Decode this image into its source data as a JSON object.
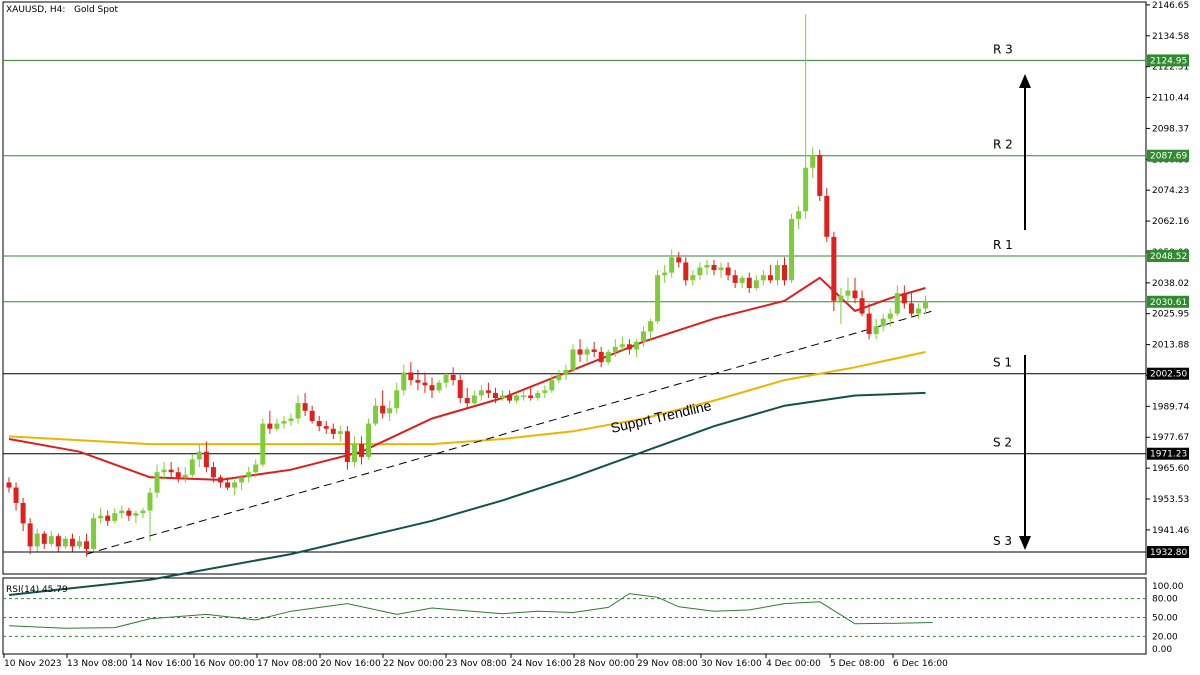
{
  "header": {
    "symbol": "XAUUSD, H4:",
    "description": "Gold Spot"
  },
  "indicator": {
    "label": "RSI(14) 45.79",
    "ticks": [
      "100.00",
      "80.00",
      "50.00",
      "20.00",
      "0.00"
    ]
  },
  "annotation": "Supprt Trendline",
  "chart_data": {
    "type": "candlestick",
    "price_range": [
      1925,
      2147
    ],
    "price_ticks": [
      "2146.65",
      "2134.58",
      "2122.51",
      "2110.44",
      "2098.37",
      "2086.30",
      "2074.23",
      "2062.16",
      "2050.09",
      "2038.02",
      "2025.95",
      "2013.88",
      "2001.81",
      "1989.74",
      "1977.67",
      "1965.60",
      "1953.53",
      "1941.46"
    ],
    "time_labels": [
      "10 Nov 2023",
      "13 Nov 08:00",
      "14 Nov 16:00",
      "16 Nov 00:00",
      "17 Nov 08:00",
      "20 Nov 16:00",
      "22 Nov 00:00",
      "23 Nov 08:00",
      "24 Nov 16:00",
      "28 Nov 00:00",
      "29 Nov 08:00",
      "30 Nov 16:00",
      "4 Dec 00:00",
      "5 Dec 08:00",
      "6 Dec 16:00"
    ],
    "levels": [
      {
        "name": "R 3",
        "price": "2124.95",
        "color": "#2e8b2e"
      },
      {
        "name": "R 2",
        "price": "2087.69",
        "color": "#2e8b2e"
      },
      {
        "name": "R 1",
        "price": "2048.52",
        "color": "#2e8b2e"
      },
      {
        "name": "",
        "price": "2030.61",
        "color": "#2e8b2e"
      },
      {
        "name": "S 1",
        "price": "2002.50",
        "color": "#000000"
      },
      {
        "name": "S 2",
        "price": "1971.23",
        "color": "#000000"
      },
      {
        "name": "S 3",
        "price": "1932.80",
        "color": "#000000"
      }
    ],
    "candles": [
      [
        1960,
        1962,
        1956,
        1958
      ],
      [
        1958,
        1960,
        1949,
        1952
      ],
      [
        1952,
        1954,
        1941,
        1944
      ],
      [
        1944,
        1946,
        1932,
        1935
      ],
      [
        1935,
        1942,
        1933,
        1940
      ],
      [
        1940,
        1941,
        1934,
        1936
      ],
      [
        1936,
        1941,
        1935,
        1939
      ],
      [
        1939,
        1940,
        1933,
        1935
      ],
      [
        1935,
        1939,
        1934,
        1938
      ],
      [
        1938,
        1940,
        1933,
        1935
      ],
      [
        1935,
        1939,
        1934,
        1937
      ],
      [
        1937,
        1940,
        1931,
        1934
      ],
      [
        1934,
        1948,
        1933,
        1946
      ],
      [
        1946,
        1950,
        1944,
        1947
      ],
      [
        1947,
        1949,
        1943,
        1945
      ],
      [
        1945,
        1950,
        1944,
        1948
      ],
      [
        1948,
        1951,
        1946,
        1949
      ],
      [
        1949,
        1950,
        1945,
        1947
      ],
      [
        1947,
        1949,
        1944,
        1948
      ],
      [
        1948,
        1950,
        1946,
        1949
      ],
      [
        1949,
        1958,
        1937,
        1956
      ],
      [
        1956,
        1967,
        1954,
        1964
      ],
      [
        1964,
        1968,
        1961,
        1965
      ],
      [
        1965,
        1968,
        1962,
        1964
      ],
      [
        1964,
        1966,
        1960,
        1962
      ],
      [
        1962,
        1966,
        1960,
        1963
      ],
      [
        1963,
        1971,
        1962,
        1969
      ],
      [
        1969,
        1975,
        1966,
        1972
      ],
      [
        1972,
        1976,
        1964,
        1966
      ],
      [
        1966,
        1968,
        1960,
        1962
      ],
      [
        1962,
        1963,
        1958,
        1960
      ],
      [
        1960,
        1962,
        1957,
        1958
      ],
      [
        1958,
        1961,
        1955,
        1960
      ],
      [
        1960,
        1963,
        1957,
        1962
      ],
      [
        1962,
        1966,
        1960,
        1964
      ],
      [
        1964,
        1969,
        1962,
        1967
      ],
      [
        1967,
        1985,
        1966,
        1983
      ],
      [
        1983,
        1988,
        1979,
        1981
      ],
      [
        1981,
        1985,
        1980,
        1983
      ],
      [
        1983,
        1986,
        1981,
        1984
      ],
      [
        1984,
        1987,
        1982,
        1985
      ],
      [
        1985,
        1994,
        1983,
        1991
      ],
      [
        1991,
        1995,
        1986,
        1988
      ],
      [
        1988,
        1990,
        1983,
        1984
      ],
      [
        1984,
        1986,
        1980,
        1982
      ],
      [
        1982,
        1984,
        1979,
        1981
      ],
      [
        1981,
        1983,
        1977,
        1979
      ],
      [
        1979,
        1982,
        1976,
        1980
      ],
      [
        1980,
        1982,
        1965,
        1968
      ],
      [
        1968,
        1978,
        1966,
        1975
      ],
      [
        1975,
        1978,
        1967,
        1970
      ],
      [
        1970,
        1985,
        1969,
        1983
      ],
      [
        1983,
        1993,
        1982,
        1990
      ],
      [
        1990,
        1996,
        1985,
        1987
      ],
      [
        1987,
        1992,
        1984,
        1989
      ],
      [
        1989,
        1999,
        1987,
        1996
      ],
      [
        1996,
        2006,
        1994,
        2003
      ],
      [
        2003,
        2007,
        1998,
        2000
      ],
      [
        2000,
        2004,
        1996,
        1999
      ],
      [
        1999,
        2003,
        1995,
        1998
      ],
      [
        1998,
        2001,
        1993,
        1996
      ],
      [
        1996,
        2000,
        1995,
        1999
      ],
      [
        1999,
        2003,
        1997,
        2002
      ],
      [
        2002,
        2005,
        1998,
        2000
      ],
      [
        2000,
        2002,
        1991,
        1993
      ],
      [
        1993,
        1997,
        1989,
        1991
      ],
      [
        1991,
        1996,
        1990,
        1994
      ],
      [
        1994,
        1998,
        1992,
        1996
      ],
      [
        1996,
        1999,
        1993,
        1995
      ],
      [
        1995,
        1997,
        1991,
        1993
      ],
      [
        1993,
        1996,
        1992,
        1994
      ],
      [
        1994,
        1996,
        1991,
        1992
      ],
      [
        1992,
        1995,
        1991,
        1994
      ],
      [
        1994,
        1996,
        1992,
        1994
      ],
      [
        1994,
        1997,
        1992,
        1993
      ],
      [
        1993,
        1996,
        1992,
        1995
      ],
      [
        1995,
        1998,
        1993,
        1996
      ],
      [
        1996,
        2002,
        1995,
        2000
      ],
      [
        2000,
        2004,
        1999,
        2002
      ],
      [
        2002,
        2006,
        2000,
        2004
      ],
      [
        2004,
        2014,
        2003,
        2012
      ],
      [
        2012,
        2016,
        2007,
        2010
      ],
      [
        2010,
        2013,
        2007,
        2012
      ],
      [
        2012,
        2015,
        2009,
        2011
      ],
      [
        2011,
        2013,
        2005,
        2007
      ],
      [
        2007,
        2012,
        2006,
        2011
      ],
      [
        2011,
        2016,
        2009,
        2013
      ],
      [
        2013,
        2017,
        2011,
        2014
      ],
      [
        2014,
        2016,
        2010,
        2012
      ],
      [
        2012,
        2016,
        2009,
        2015
      ],
      [
        2015,
        2021,
        2013,
        2019
      ],
      [
        2019,
        2024,
        2016,
        2023
      ],
      [
        2023,
        2043,
        2022,
        2041
      ],
      [
        2041,
        2045,
        2038,
        2042
      ],
      [
        2042,
        2051,
        2040,
        2048
      ],
      [
        2048,
        2050,
        2044,
        2046
      ],
      [
        2046,
        2048,
        2037,
        2039
      ],
      [
        2039,
        2043,
        2037,
        2041
      ],
      [
        2041,
        2046,
        2039,
        2044
      ],
      [
        2044,
        2047,
        2041,
        2045
      ],
      [
        2045,
        2047,
        2041,
        2043
      ],
      [
        2043,
        2046,
        2040,
        2044
      ],
      [
        2044,
        2046,
        2039,
        2041
      ],
      [
        2041,
        2043,
        2036,
        2038
      ],
      [
        2038,
        2041,
        2036,
        2040
      ],
      [
        2040,
        2042,
        2034,
        2036
      ],
      [
        2036,
        2041,
        2035,
        2039
      ],
      [
        2039,
        2043,
        2037,
        2041
      ],
      [
        2041,
        2045,
        2038,
        2039
      ],
      [
        2039,
        2047,
        2037,
        2045
      ],
      [
        2045,
        2048,
        2037,
        2039
      ],
      [
        2039,
        2065,
        2038,
        2063
      ],
      [
        2063,
        2068,
        2059,
        2066
      ],
      [
        2066,
        2143,
        2063,
        2083
      ],
      [
        2083,
        2091,
        2079,
        2088
      ],
      [
        2088,
        2090,
        2070,
        2072
      ],
      [
        2072,
        2075,
        2054,
        2056
      ],
      [
        2056,
        2058,
        2027,
        2031
      ],
      [
        2031,
        2036,
        2022,
        2033
      ],
      [
        2033,
        2040,
        2030,
        2035
      ],
      [
        2035,
        2040,
        2030,
        2032
      ],
      [
        2032,
        2035,
        2025,
        2026
      ],
      [
        2026,
        2030,
        2016,
        2018
      ],
      [
        2018,
        2024,
        2016,
        2021
      ],
      [
        2021,
        2026,
        2019,
        2024
      ],
      [
        2024,
        2028,
        2021,
        2026
      ],
      [
        2026,
        2037,
        2025,
        2034
      ],
      [
        2034,
        2037,
        2028,
        2030
      ],
      [
        2030,
        2034,
        2025,
        2026
      ],
      [
        2026,
        2030,
        2024,
        2028
      ],
      [
        2028,
        2033,
        2026,
        2031
      ]
    ],
    "ma_red": [
      [
        0,
        1977
      ],
      [
        10,
        1972
      ],
      [
        20,
        1962
      ],
      [
        30,
        1961
      ],
      [
        40,
        1965
      ],
      [
        50,
        1972
      ],
      [
        60,
        1985
      ],
      [
        70,
        1993
      ],
      [
        80,
        2004
      ],
      [
        90,
        2015
      ],
      [
        100,
        2024
      ],
      [
        110,
        2031
      ],
      [
        115,
        2040
      ],
      [
        120,
        2027
      ],
      [
        125,
        2032
      ],
      [
        130,
        2036
      ]
    ],
    "ma_yellow": [
      [
        0,
        1978
      ],
      [
        20,
        1975
      ],
      [
        40,
        1975
      ],
      [
        60,
        1975
      ],
      [
        70,
        1977
      ],
      [
        80,
        1980
      ],
      [
        90,
        1985
      ],
      [
        100,
        1992
      ],
      [
        110,
        2000
      ],
      [
        120,
        2005
      ],
      [
        130,
        2011
      ]
    ],
    "ma_teal": [
      [
        0,
        1916
      ],
      [
        20,
        1922
      ],
      [
        40,
        1932
      ],
      [
        60,
        1945
      ],
      [
        70,
        1953
      ],
      [
        80,
        1962
      ],
      [
        90,
        1972
      ],
      [
        100,
        1982
      ],
      [
        110,
        1990
      ],
      [
        120,
        1994
      ],
      [
        130,
        1995
      ]
    ],
    "trendline": [
      [
        11,
        1932
      ],
      [
        131,
        2027
      ]
    ],
    "rsi": [
      [
        0,
        37
      ],
      [
        8,
        33
      ],
      [
        15,
        34
      ],
      [
        20,
        48
      ],
      [
        28,
        55
      ],
      [
        35,
        46
      ],
      [
        40,
        60
      ],
      [
        48,
        72
      ],
      [
        55,
        55
      ],
      [
        60,
        65
      ],
      [
        70,
        56
      ],
      [
        75,
        60
      ],
      [
        80,
        58
      ],
      [
        85,
        66
      ],
      [
        88,
        88
      ],
      [
        92,
        82
      ],
      [
        95,
        67
      ],
      [
        100,
        60
      ],
      [
        105,
        62
      ],
      [
        110,
        72
      ],
      [
        115,
        75
      ],
      [
        120,
        40
      ],
      [
        126,
        41
      ],
      [
        131,
        42
      ]
    ]
  }
}
